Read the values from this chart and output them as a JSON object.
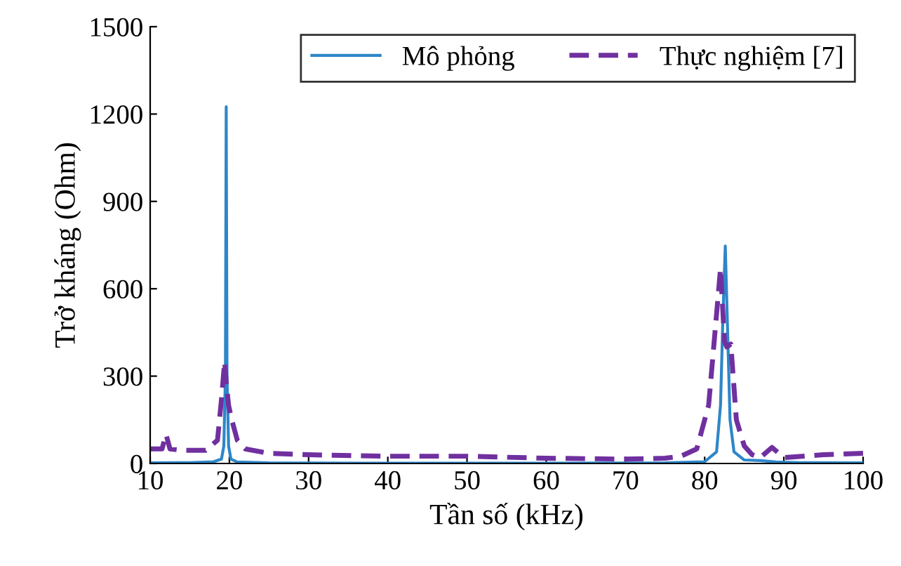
{
  "chart_data": {
    "type": "line",
    "xlabel": "Tần số (kHz)",
    "ylabel": "Trở kháng (Ohm)",
    "xlim": [
      10,
      100
    ],
    "ylim": [
      0,
      1500
    ],
    "xticks": [
      10,
      20,
      30,
      40,
      50,
      60,
      70,
      80,
      90,
      100
    ],
    "yticks": [
      0,
      300,
      600,
      900,
      1200,
      1500
    ],
    "grid": false,
    "legend": "top right",
    "series": [
      {
        "name": "Mô phỏng",
        "color": "#2e86c8",
        "line_style": "solid",
        "x": [
          10,
          15,
          18,
          19,
          19.3,
          19.5,
          19.6,
          19.7,
          19.9,
          20.2,
          21,
          25,
          40,
          60,
          75,
          80,
          81.5,
          82,
          82.3,
          82.6,
          82.9,
          83.2,
          83.7,
          85,
          87,
          89,
          92,
          100
        ],
        "values": [
          2,
          3,
          6,
          15,
          60,
          300,
          1225,
          300,
          60,
          15,
          5,
          2,
          1,
          1,
          2,
          6,
          40,
          200,
          500,
          747,
          450,
          150,
          40,
          12,
          10,
          5,
          3,
          2
        ]
      },
      {
        "name": "Thực nghiệm [7]",
        "color": "#7030a0",
        "line_style": "dashed",
        "x": [
          10,
          11.5,
          12,
          12.5,
          14,
          17,
          18.5,
          19,
          19.4,
          19.6,
          19.9,
          20.3,
          21,
          22,
          25,
          30,
          40,
          50,
          60,
          70,
          75,
          77,
          79,
          80.5,
          81.3,
          82,
          82.5,
          82.8,
          83.3,
          84,
          85,
          86,
          87,
          88.5,
          90,
          95,
          100
        ],
        "values": [
          50,
          50,
          100,
          50,
          45,
          45,
          80,
          220,
          350,
          280,
          200,
          150,
          80,
          50,
          35,
          30,
          25,
          25,
          18,
          15,
          18,
          25,
          50,
          200,
          450,
          670,
          420,
          400,
          410,
          150,
          60,
          30,
          20,
          55,
          20,
          30,
          35
        ]
      }
    ]
  }
}
